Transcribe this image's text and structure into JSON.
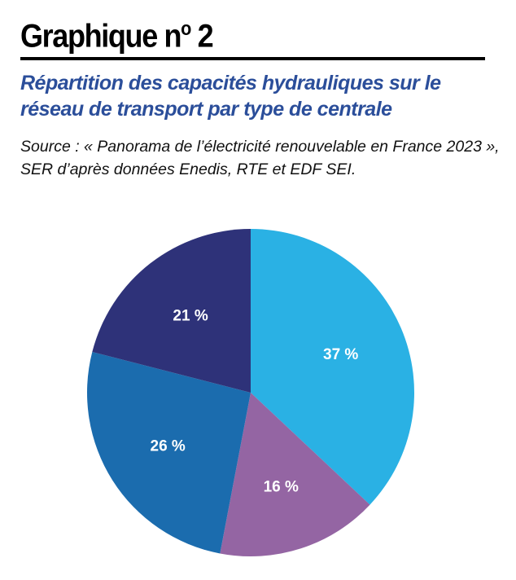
{
  "header": {
    "title": "Graphique n",
    "title_sup": "o",
    "title_num": " 2",
    "subtitle": "Répartition des capacités hydrauliques sur le réseau de transport par type de centrale",
    "source": "Source : « Panorama de l’électricité renouvelable en France 2023 », SER d’après données Enedis, RTE et EDF SEI."
  },
  "chart_data": {
    "type": "pie",
    "start": "top",
    "direction": "clockwise",
    "values": [
      37,
      16,
      26,
      21
    ],
    "labels": [
      "37 %",
      "16 %",
      "26 %",
      "21 %"
    ],
    "colors": [
      "#2AB1E4",
      "#9465A3",
      "#1B6CAE",
      "#2E3279"
    ]
  }
}
